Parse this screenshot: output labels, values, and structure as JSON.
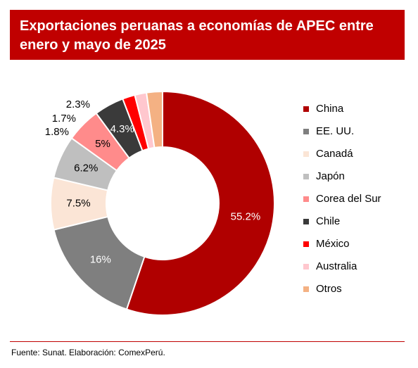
{
  "title": "Exportaciones peruanas a economías de APEC entre enero y mayo de 2025",
  "source": "Fuente: Sunat. Elaboración: ComexPerú.",
  "chart_data": {
    "type": "pie",
    "variant": "donut",
    "legend_position": "right",
    "slices": [
      {
        "label": "China",
        "value": 55.2,
        "display": "55.2%",
        "color": "#b00000",
        "text_color": "#ffffff"
      },
      {
        "label": "EE. UU.",
        "value": 16,
        "display": "16%",
        "color": "#7f7f7f",
        "text_color": "#ffffff"
      },
      {
        "label": "Canadá",
        "value": 7.5,
        "display": "7.5%",
        "color": "#fbe5d6",
        "text_color": "#000000"
      },
      {
        "label": "Japón",
        "value": 6.2,
        "display": "6.2%",
        "color": "#bfbfbf",
        "text_color": "#000000"
      },
      {
        "label": "Corea del Sur",
        "value": 5,
        "display": "5%",
        "color": "#ff8b8b",
        "text_color": "#000000"
      },
      {
        "label": "Chile",
        "value": 4.3,
        "display": "4.3%",
        "color": "#3a3a3a",
        "text_color": "#ffffff"
      },
      {
        "label": "México",
        "value": 1.8,
        "display": "1.8%",
        "color": "#ff0000",
        "text_color": "#000000"
      },
      {
        "label": "Australia",
        "value": 1.7,
        "display": "1.7%",
        "color": "#ffc7ce",
        "text_color": "#000000"
      },
      {
        "label": "Otros",
        "value": 2.3,
        "display": "2.3%",
        "color": "#f4b183",
        "text_color": "#000000"
      }
    ]
  }
}
